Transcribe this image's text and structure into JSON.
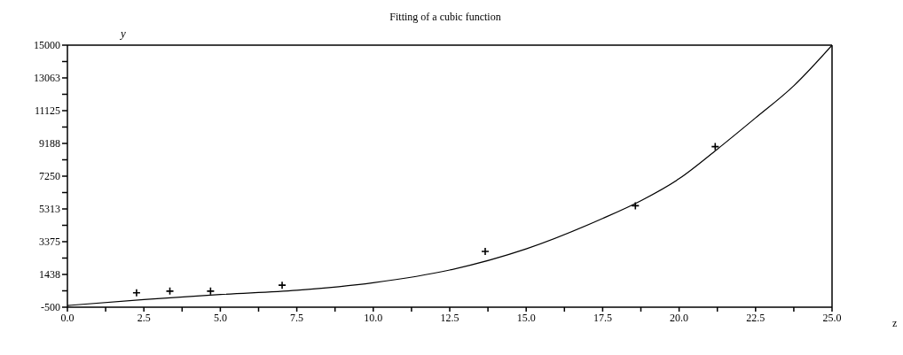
{
  "chart_data": {
    "type": "scatter",
    "title": "Fitting of a cubic function",
    "xlabel": "z",
    "ylabel": "y",
    "xlim": [
      0,
      25
    ],
    "ylim": [
      -500,
      15000
    ],
    "xticks": [
      {
        "value": 0,
        "label": "0.0"
      },
      {
        "value": 1.25,
        "label": null
      },
      {
        "value": 2.5,
        "label": "2.5"
      },
      {
        "value": 3.75,
        "label": null
      },
      {
        "value": 5,
        "label": "5.0"
      },
      {
        "value": 6.25,
        "label": null
      },
      {
        "value": 7.5,
        "label": "7.5"
      },
      {
        "value": 8.75,
        "label": null
      },
      {
        "value": 10,
        "label": "10.0"
      },
      {
        "value": 11.25,
        "label": null
      },
      {
        "value": 12.5,
        "label": "12.5"
      },
      {
        "value": 13.75,
        "label": null
      },
      {
        "value": 15,
        "label": "15.0"
      },
      {
        "value": 16.25,
        "label": null
      },
      {
        "value": 17.5,
        "label": "17.5"
      },
      {
        "value": 18.75,
        "label": null
      },
      {
        "value": 20,
        "label": "20.0"
      },
      {
        "value": 21.25,
        "label": null
      },
      {
        "value": 22.5,
        "label": "22.5"
      },
      {
        "value": 23.75,
        "label": null
      },
      {
        "value": 25,
        "label": "25.0"
      }
    ],
    "yticks": [
      -500,
      {
        "value": 468.75,
        "label": null
      },
      {
        "value": 1437.5,
        "label": "1438"
      },
      {
        "value": 2406.25,
        "label": null
      },
      {
        "value": 3375,
        "label": "3375"
      },
      {
        "value": 4343.75,
        "label": null
      },
      {
        "value": 5312.5,
        "label": "5313"
      },
      {
        "value": 6281.25,
        "label": null
      },
      {
        "value": 7250,
        "label": "7250"
      },
      {
        "value": 8218.75,
        "label": null
      },
      {
        "value": 9187.5,
        "label": "9188"
      },
      {
        "value": 10156.25,
        "label": null
      },
      {
        "value": 11125,
        "label": "11125"
      },
      {
        "value": 12093.75,
        "label": null
      },
      {
        "value": 13062.5,
        "label": "13063"
      },
      {
        "value": 14031.25,
        "label": null
      },
      15000
    ],
    "grid": false,
    "legend": false,
    "series": [
      {
        "marker": "cross",
        "color": "#000000",
        "x": [
          2.26,
          3.35,
          4.68,
          7.02,
          13.66,
          18.57,
          21.18
        ],
        "values": [
          350,
          450,
          450,
          800,
          2800,
          5500,
          9000
        ]
      },
      {
        "type": "line",
        "marker": "none",
        "line_style": "solid",
        "color": "#000000",
        "x": [
          0,
          2.5,
          5,
          7.5,
          10,
          12.5,
          15,
          17.5,
          18.75,
          20,
          21.25,
          22.5,
          23.75,
          25
        ],
        "values": [
          -400,
          -50,
          250,
          500,
          950,
          1700,
          2950,
          4750,
          5800,
          7100,
          8850,
          10700,
          12600,
          15000
        ]
      }
    ]
  }
}
